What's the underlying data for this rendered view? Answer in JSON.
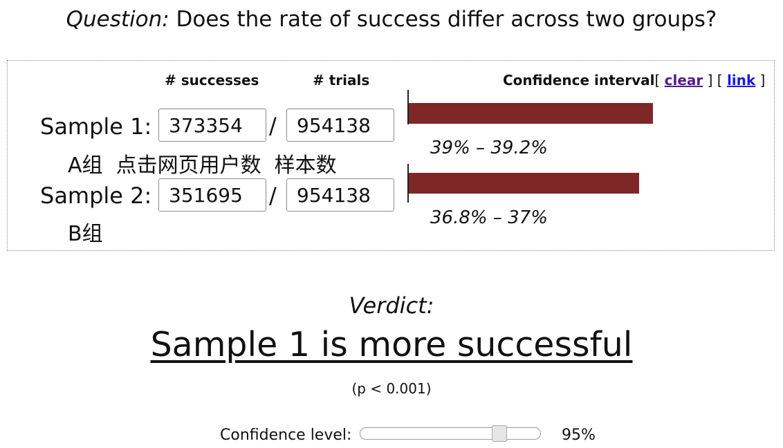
{
  "question": {
    "label": "Question:",
    "text": " Does the rate of success differ across two groups?"
  },
  "headers": {
    "successes": "# successes",
    "trials": "# trials",
    "confidence_interval": "Confidence interval"
  },
  "links": {
    "open1": "[ ",
    "clear": "clear",
    "mid": " ] [ ",
    "link": "link",
    "close": " ]"
  },
  "samples": [
    {
      "label": "Sample 1:",
      "successes": "373354",
      "trials": "954138",
      "sub_label": "A组  点击网页用户数  样本数",
      "ci_text": "39% – 39.2%",
      "ci_low": 39.0,
      "ci_high": 39.2
    },
    {
      "label": "Sample 2:",
      "successes": "351695",
      "trials": "954138",
      "sub_label": "B组",
      "ci_text": "36.8% – 37%",
      "ci_low": 36.8,
      "ci_high": 37.0
    }
  ],
  "slash": "/",
  "verdict": {
    "label": "Verdict:",
    "text": "Sample 1 is more successful",
    "p_value": "(p < 0.001)"
  },
  "confidence": {
    "label": "Confidence level:",
    "value_text": "95%",
    "slider_fraction": 0.8
  },
  "colors": {
    "bar": "#7d2727",
    "link_visited": "#551a8b",
    "link": "#1a1ae0"
  }
}
